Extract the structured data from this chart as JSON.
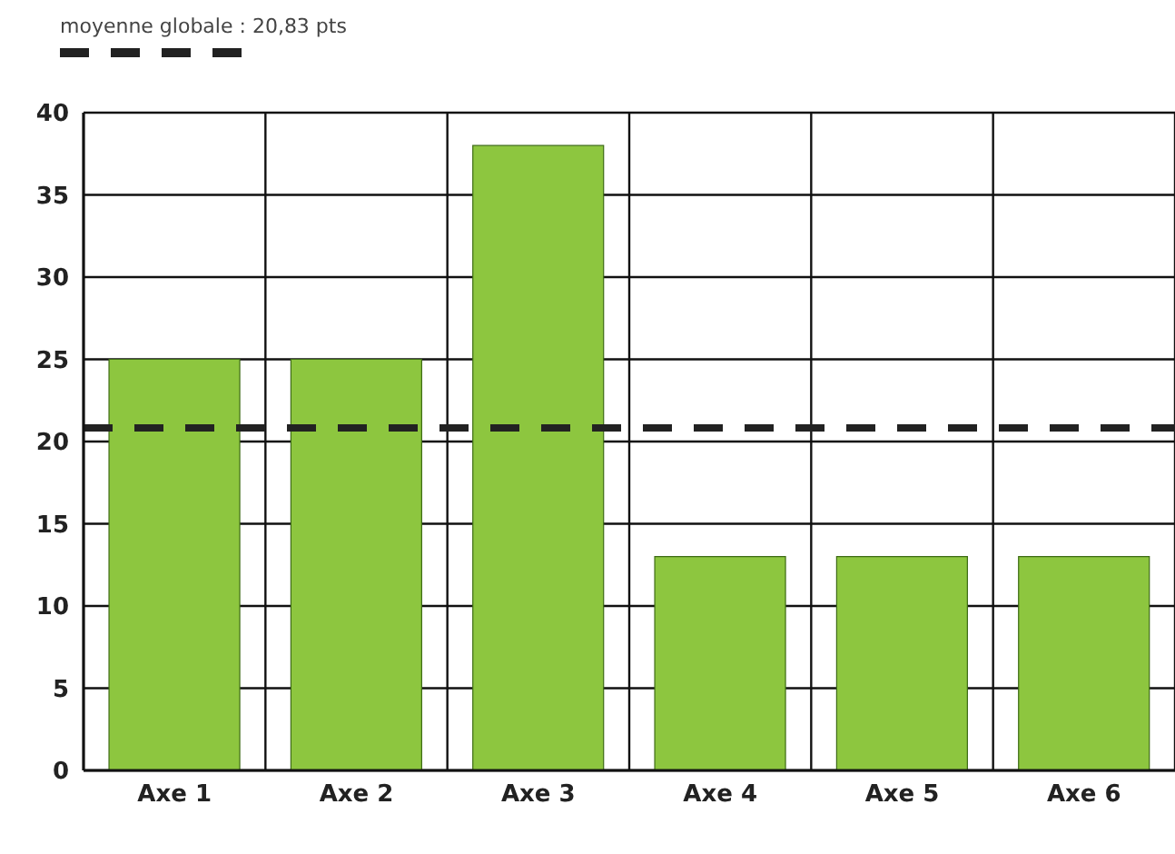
{
  "chart_data": {
    "type": "bar",
    "categories": [
      "Axe 1",
      "Axe 2",
      "Axe 3",
      "Axe 4",
      "Axe 5",
      "Axe 6"
    ],
    "values": [
      25,
      25,
      38,
      13,
      13,
      13
    ],
    "color": "#8dc63f",
    "ylim": [
      0,
      40
    ],
    "yticks": [
      0,
      5,
      10,
      15,
      20,
      25,
      30,
      35,
      40
    ],
    "grid": true,
    "legend": "top left",
    "ref_lines": [
      {
        "axis": "y",
        "value": 20.83,
        "label": "moyenne globale : 20,83 pts",
        "color": "#222222",
        "line_style": "dashed"
      }
    ]
  }
}
